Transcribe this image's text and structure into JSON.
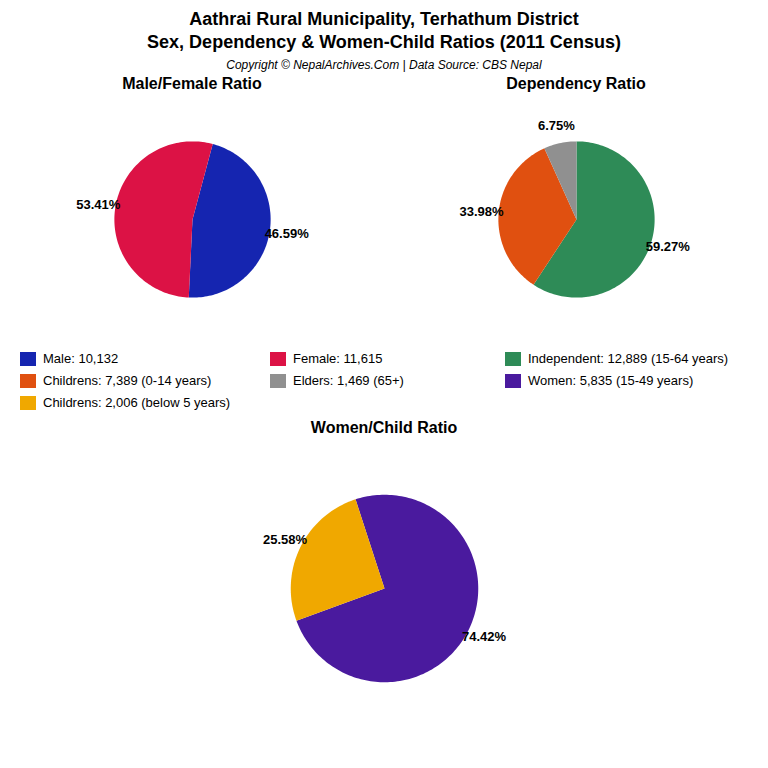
{
  "title": "Aathrai Rural Municipality, Terhathum District",
  "subtitle": "Sex, Dependency & Women-Child Ratios (2011 Census)",
  "annotations": [
    "Copyright © NepalArchives.Com | Data Source: CBS Nepal"
  ],
  "chart_data": [
    {
      "type": "pie",
      "title": "Male/Female Ratio",
      "categories": [
        "Male: 10,132",
        "Female: 11,615"
      ],
      "values": [
        46.59,
        53.41
      ],
      "value_labels": [
        "46.59%",
        "53.41%"
      ],
      "colors": [
        "#1525b0",
        "#dc1245"
      ],
      "data_labels": true,
      "legend": "center"
    },
    {
      "type": "pie",
      "title": "Dependency Ratio",
      "categories": [
        "Independent: 12,889 (15-64 years)",
        "Childrens: 7,389 (0-14 years)",
        "Elders: 1,469 (65+)"
      ],
      "values": [
        59.27,
        33.98,
        6.75
      ],
      "value_labels": [
        "59.27%",
        "33.98%",
        "6.75%"
      ],
      "colors": [
        "#2e8b57",
        "#e05010",
        "#909090"
      ],
      "data_labels": true,
      "legend": "center"
    },
    {
      "type": "pie",
      "title": "Women/Child Ratio",
      "categories": [
        "Women: 5,835 (15-49 years)",
        "Childrens: 2,006 (below 5 years)"
      ],
      "values": [
        74.42,
        25.58
      ],
      "value_labels": [
        "74.42%",
        "25.58%"
      ],
      "colors": [
        "#4a1a9e",
        "#f0a800"
      ],
      "data_labels": true,
      "legend": "center"
    }
  ]
}
